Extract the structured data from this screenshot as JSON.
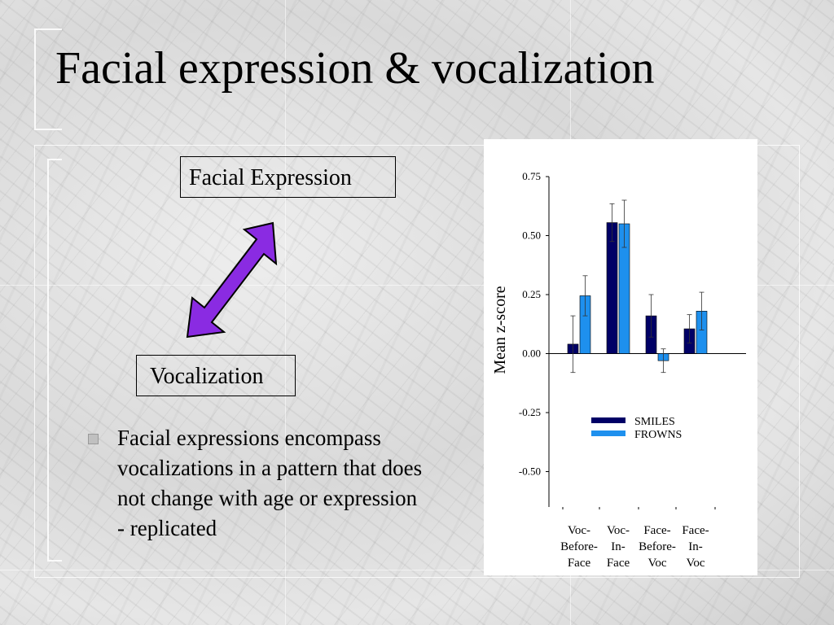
{
  "slide": {
    "title": "Facial expression & vocalization",
    "diagram": {
      "top_box": "Facial Expression",
      "bottom_box": "Vocalization"
    },
    "bullets": [
      "Facial expressions encompass vocalizations in a pattern that does not change with age or expression - replicated"
    ]
  },
  "colors": {
    "smiles": "#000066",
    "frowns": "#1e90ee",
    "arrow": "#8a2be2"
  },
  "chart_data": {
    "type": "bar",
    "title": "",
    "xlabel": "",
    "ylabel": "Mean z-score",
    "ylim": [
      -0.65,
      0.75
    ],
    "yticks": [
      "0.75",
      "0.50",
      "0.25",
      "0.00",
      "-0.25",
      "-0.50"
    ],
    "yticks_values": [
      0.75,
      0.5,
      0.25,
      0.0,
      -0.25,
      -0.5
    ],
    "categories": [
      [
        "Voc-",
        "Before-",
        "Face"
      ],
      [
        "Voc-",
        "In-",
        "Face"
      ],
      [
        "Face-",
        "Before-",
        "Voc"
      ],
      [
        "Face-",
        "In-",
        "Voc"
      ]
    ],
    "series": [
      {
        "name": "SMILES",
        "values": [
          0.04,
          0.555,
          0.16,
          0.105
        ],
        "errors": [
          0.12,
          0.08,
          0.09,
          0.06
        ]
      },
      {
        "name": "FROWNS",
        "values": [
          0.245,
          0.55,
          -0.03,
          0.18
        ],
        "errors": [
          0.085,
          0.1,
          0.05,
          0.08
        ]
      }
    ],
    "legend_position": "bottom-center",
    "grid": false
  }
}
